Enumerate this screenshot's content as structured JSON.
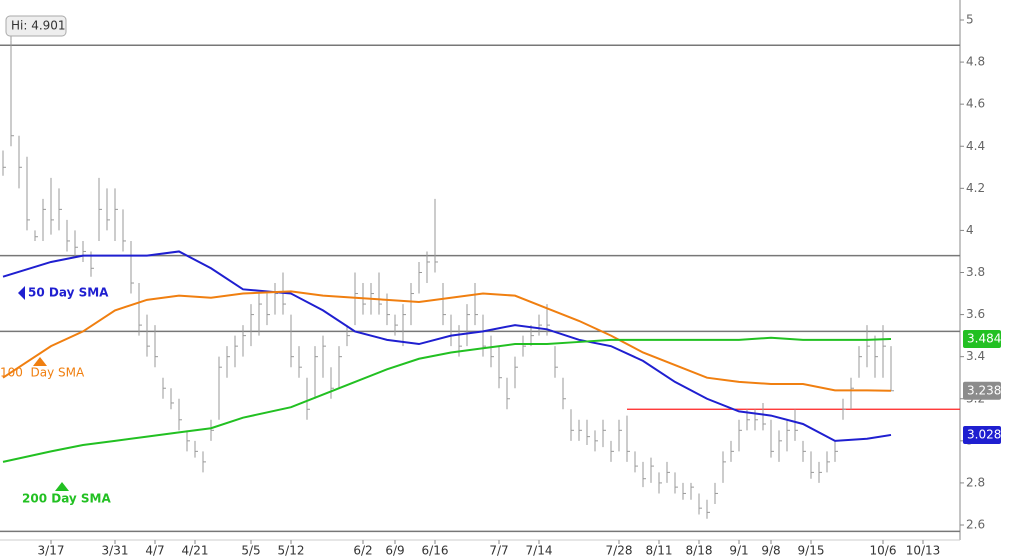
{
  "chart_data": {
    "type": "ohlc",
    "annotation": "Hi: 4.901",
    "categories": [
      null,
      null,
      null,
      null,
      null,
      null,
      "3/17",
      null,
      null,
      null,
      null,
      null,
      null,
      null,
      "3/31",
      null,
      null,
      null,
      null,
      "4/7",
      null,
      null,
      null,
      null,
      "4/21",
      null,
      null,
      null,
      null,
      null,
      null,
      "5/5",
      null,
      null,
      null,
      null,
      "5/12",
      null,
      null,
      null,
      null,
      null,
      null,
      null,
      null,
      "6/2",
      null,
      null,
      null,
      "6/9",
      null,
      null,
      null,
      null,
      "6/16",
      null,
      null,
      null,
      null,
      null,
      null,
      null,
      "7/7",
      null,
      null,
      null,
      null,
      "7/14",
      null,
      null,
      null,
      null,
      null,
      null,
      null,
      null,
      null,
      "7/28",
      null,
      null,
      null,
      null,
      "8/11",
      null,
      null,
      null,
      null,
      "8/18",
      null,
      null,
      null,
      null,
      "9/1",
      null,
      null,
      null,
      "9/8",
      null,
      null,
      null,
      null,
      "9/15",
      null,
      null,
      null,
      null,
      null,
      null,
      null,
      null,
      "10/6",
      null,
      null,
      null,
      null,
      "10/13"
    ],
    "high": [
      4.38,
      4.901,
      4.45,
      4.35,
      4.0,
      4.15,
      4.25,
      4.2,
      4.05,
      4.0,
      3.95,
      3.9,
      4.25,
      4.2,
      4.2,
      4.1,
      3.95,
      3.75,
      3.6,
      3.55,
      3.3,
      3.25,
      3.2,
      3.05,
      3.0,
      2.95,
      3.1,
      3.4,
      3.45,
      3.5,
      3.55,
      3.65,
      3.7,
      3.7,
      3.75,
      3.8,
      3.6,
      3.45,
      3.3,
      3.45,
      3.5,
      3.35,
      3.45,
      3.55,
      3.8,
      3.75,
      3.75,
      3.8,
      3.7,
      3.6,
      3.65,
      3.75,
      3.85,
      3.9,
      4.15,
      3.75,
      3.6,
      3.55,
      3.65,
      3.75,
      3.6,
      3.5,
      3.45,
      3.3,
      3.4,
      3.5,
      3.55,
      3.6,
      3.65,
      3.45,
      3.3,
      3.15,
      3.1,
      3.1,
      3.05,
      3.1,
      3.0,
      3.1,
      3.12,
      2.95,
      2.9,
      2.92,
      2.85,
      2.9,
      2.85,
      2.8,
      2.8,
      2.75,
      2.72,
      2.8,
      2.95,
      3.0,
      3.1,
      3.15,
      3.15,
      3.18,
      3.1,
      3.05,
      3.1,
      3.15,
      3.0,
      2.95,
      2.9,
      2.95,
      3.0,
      3.2,
      3.3,
      3.45,
      3.55,
      3.5,
      3.55,
      3.45,
      null,
      null,
      null,
      null
    ],
    "low": [
      4.26,
      4.4,
      4.2,
      4.0,
      3.95,
      3.95,
      3.98,
      4.0,
      3.9,
      3.88,
      3.85,
      3.78,
      3.95,
      4.0,
      3.95,
      3.9,
      3.7,
      3.5,
      3.4,
      3.35,
      3.2,
      3.15,
      3.05,
      2.95,
      2.92,
      2.85,
      3.0,
      3.1,
      3.3,
      3.35,
      3.4,
      3.45,
      3.5,
      3.55,
      3.6,
      3.6,
      3.35,
      3.3,
      3.1,
      3.2,
      3.3,
      3.2,
      3.25,
      3.45,
      3.55,
      3.6,
      3.6,
      3.6,
      3.55,
      3.5,
      3.45,
      3.55,
      3.7,
      3.75,
      3.8,
      3.55,
      3.45,
      3.4,
      3.45,
      3.55,
      3.4,
      3.35,
      3.25,
      3.15,
      3.25,
      3.4,
      3.45,
      3.5,
      3.5,
      3.3,
      3.15,
      3.0,
      3.0,
      2.98,
      2.95,
      2.97,
      2.9,
      2.95,
      2.9,
      2.85,
      2.78,
      2.8,
      2.75,
      2.8,
      2.75,
      2.72,
      2.72,
      2.65,
      2.63,
      2.7,
      2.8,
      2.9,
      2.95,
      3.05,
      3.05,
      3.05,
      2.92,
      2.9,
      2.95,
      3.0,
      2.9,
      2.82,
      2.8,
      2.85,
      2.9,
      3.1,
      3.15,
      3.3,
      3.35,
      3.3,
      3.3,
      3.24,
      null,
      null,
      null,
      null
    ],
    "close": [
      4.3,
      4.45,
      4.3,
      4.05,
      3.97,
      4.1,
      4.05,
      4.1,
      3.95,
      3.92,
      3.9,
      3.82,
      4.1,
      4.05,
      4.1,
      3.95,
      3.75,
      3.55,
      3.45,
      3.4,
      3.25,
      3.18,
      3.1,
      3.0,
      2.95,
      2.9,
      3.05,
      3.35,
      3.4,
      3.45,
      3.5,
      3.6,
      3.65,
      3.6,
      3.7,
      3.65,
      3.4,
      3.35,
      3.15,
      3.4,
      3.45,
      3.25,
      3.4,
      3.5,
      3.7,
      3.65,
      3.7,
      3.65,
      3.6,
      3.55,
      3.6,
      3.7,
      3.8,
      3.85,
      3.85,
      3.6,
      3.5,
      3.45,
      3.6,
      3.6,
      3.45,
      3.4,
      3.3,
      3.2,
      3.35,
      3.45,
      3.5,
      3.55,
      3.55,
      3.35,
      3.2,
      3.05,
      3.05,
      3.02,
      3.0,
      3.05,
      2.95,
      3.05,
      2.95,
      2.88,
      2.82,
      2.88,
      2.8,
      2.85,
      2.78,
      2.75,
      2.78,
      2.68,
      2.66,
      2.75,
      2.9,
      2.95,
      3.05,
      3.1,
      3.1,
      3.08,
      2.95,
      3.0,
      3.05,
      3.05,
      2.95,
      2.85,
      2.85,
      2.9,
      2.95,
      3.15,
      3.25,
      3.4,
      3.45,
      3.4,
      3.45,
      3.238,
      null,
      null,
      null,
      null
    ],
    "bar_color": "#9a9a9a",
    "series": [
      {
        "name": "50 Day SMA",
        "color": "#1f1fd0",
        "badge_color": "#1f1fd0",
        "x": [
          0,
          6,
          10,
          14,
          18,
          22,
          26,
          30,
          36,
          40,
          44,
          48,
          52,
          56,
          60,
          64,
          68,
          72,
          76,
          80,
          84,
          88,
          92,
          96,
          100,
          104,
          108,
          111
        ],
        "values": [
          3.78,
          3.85,
          3.88,
          3.88,
          3.88,
          3.9,
          3.82,
          3.72,
          3.7,
          3.62,
          3.52,
          3.48,
          3.46,
          3.5,
          3.52,
          3.55,
          3.53,
          3.48,
          3.45,
          3.38,
          3.28,
          3.2,
          3.14,
          3.12,
          3.08,
          3.0,
          3.01,
          3.028
        ]
      },
      {
        "name": "100  Day SMA",
        "color": "#f07f10",
        "badge_color": "#8c8c8c",
        "x": [
          0,
          6,
          10,
          14,
          18,
          22,
          26,
          30,
          36,
          40,
          44,
          48,
          52,
          56,
          60,
          64,
          68,
          72,
          76,
          80,
          84,
          88,
          92,
          96,
          100,
          104,
          108,
          111
        ],
        "values": [
          3.3,
          3.45,
          3.52,
          3.62,
          3.67,
          3.69,
          3.68,
          3.7,
          3.71,
          3.69,
          3.68,
          3.67,
          3.66,
          3.68,
          3.7,
          3.69,
          3.63,
          3.57,
          3.5,
          3.42,
          3.36,
          3.3,
          3.28,
          3.27,
          3.27,
          3.24,
          3.24,
          3.238
        ]
      },
      {
        "name": "200 Day SMA",
        "color": "#22c022",
        "badge_color": "#22c022",
        "x": [
          0,
          6,
          10,
          14,
          18,
          22,
          26,
          30,
          36,
          40,
          44,
          48,
          52,
          56,
          60,
          64,
          68,
          72,
          76,
          80,
          84,
          88,
          92,
          96,
          100,
          104,
          108,
          111
        ],
        "values": [
          2.9,
          2.95,
          2.98,
          3.0,
          3.02,
          3.04,
          3.06,
          3.11,
          3.16,
          3.22,
          3.28,
          3.34,
          3.39,
          3.42,
          3.44,
          3.46,
          3.46,
          3.47,
          3.48,
          3.48,
          3.48,
          3.48,
          3.48,
          3.49,
          3.48,
          3.48,
          3.48,
          3.484
        ]
      }
    ],
    "hlines": [
      4.88,
      3.88,
      3.52,
      2.57
    ],
    "support_line": {
      "value": 3.15,
      "from": 78,
      "color": "#ff2020"
    },
    "ylim": [
      2.57,
      5.09
    ],
    "yticks": [
      2.6,
      2.8,
      3,
      3.2,
      3.4,
      3.6,
      3.8,
      4,
      4.2,
      4.4,
      4.6,
      4.8,
      5
    ]
  }
}
